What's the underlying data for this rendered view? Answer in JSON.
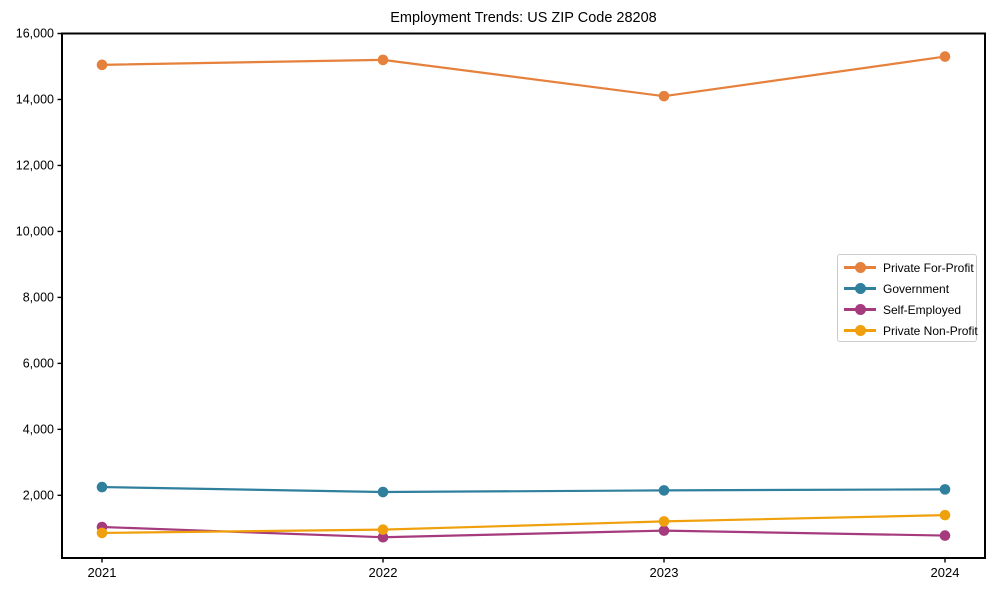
{
  "chart_data": {
    "type": "line",
    "title": "Employment Trends: US ZIP Code 28208",
    "xlabel": "",
    "ylabel": "",
    "categories": [
      "2021",
      "2022",
      "2023",
      "2024"
    ],
    "series": [
      {
        "name": "Private For-Profit",
        "color": "#e5813c",
        "values": [
          15050,
          15200,
          14100,
          15300
        ]
      },
      {
        "name": "Government",
        "color": "#2f7f9d",
        "values": [
          2250,
          2100,
          2150,
          2180
        ]
      },
      {
        "name": "Self-Employed",
        "color": "#a53a7d",
        "values": [
          1040,
          730,
          930,
          780
        ]
      },
      {
        "name": "Private Non-Profit",
        "color": "#efa00c",
        "values": [
          860,
          960,
          1210,
          1400
        ]
      }
    ],
    "ylim": [
      100,
      16000
    ],
    "yticks": [
      2000,
      4000,
      6000,
      8000,
      10000,
      12000,
      14000,
      16000
    ],
    "ytick_labels": [
      "2,000",
      "4,000",
      "6,000",
      "8,000",
      "10,000",
      "12,000",
      "14,000",
      "16,000"
    ],
    "grid": false,
    "legend_position": "center-right",
    "marker": "circle",
    "colors": {
      "axis": "#000000",
      "text": "#000000",
      "legend_border": "#cccccc",
      "background": "#ffffff"
    }
  }
}
